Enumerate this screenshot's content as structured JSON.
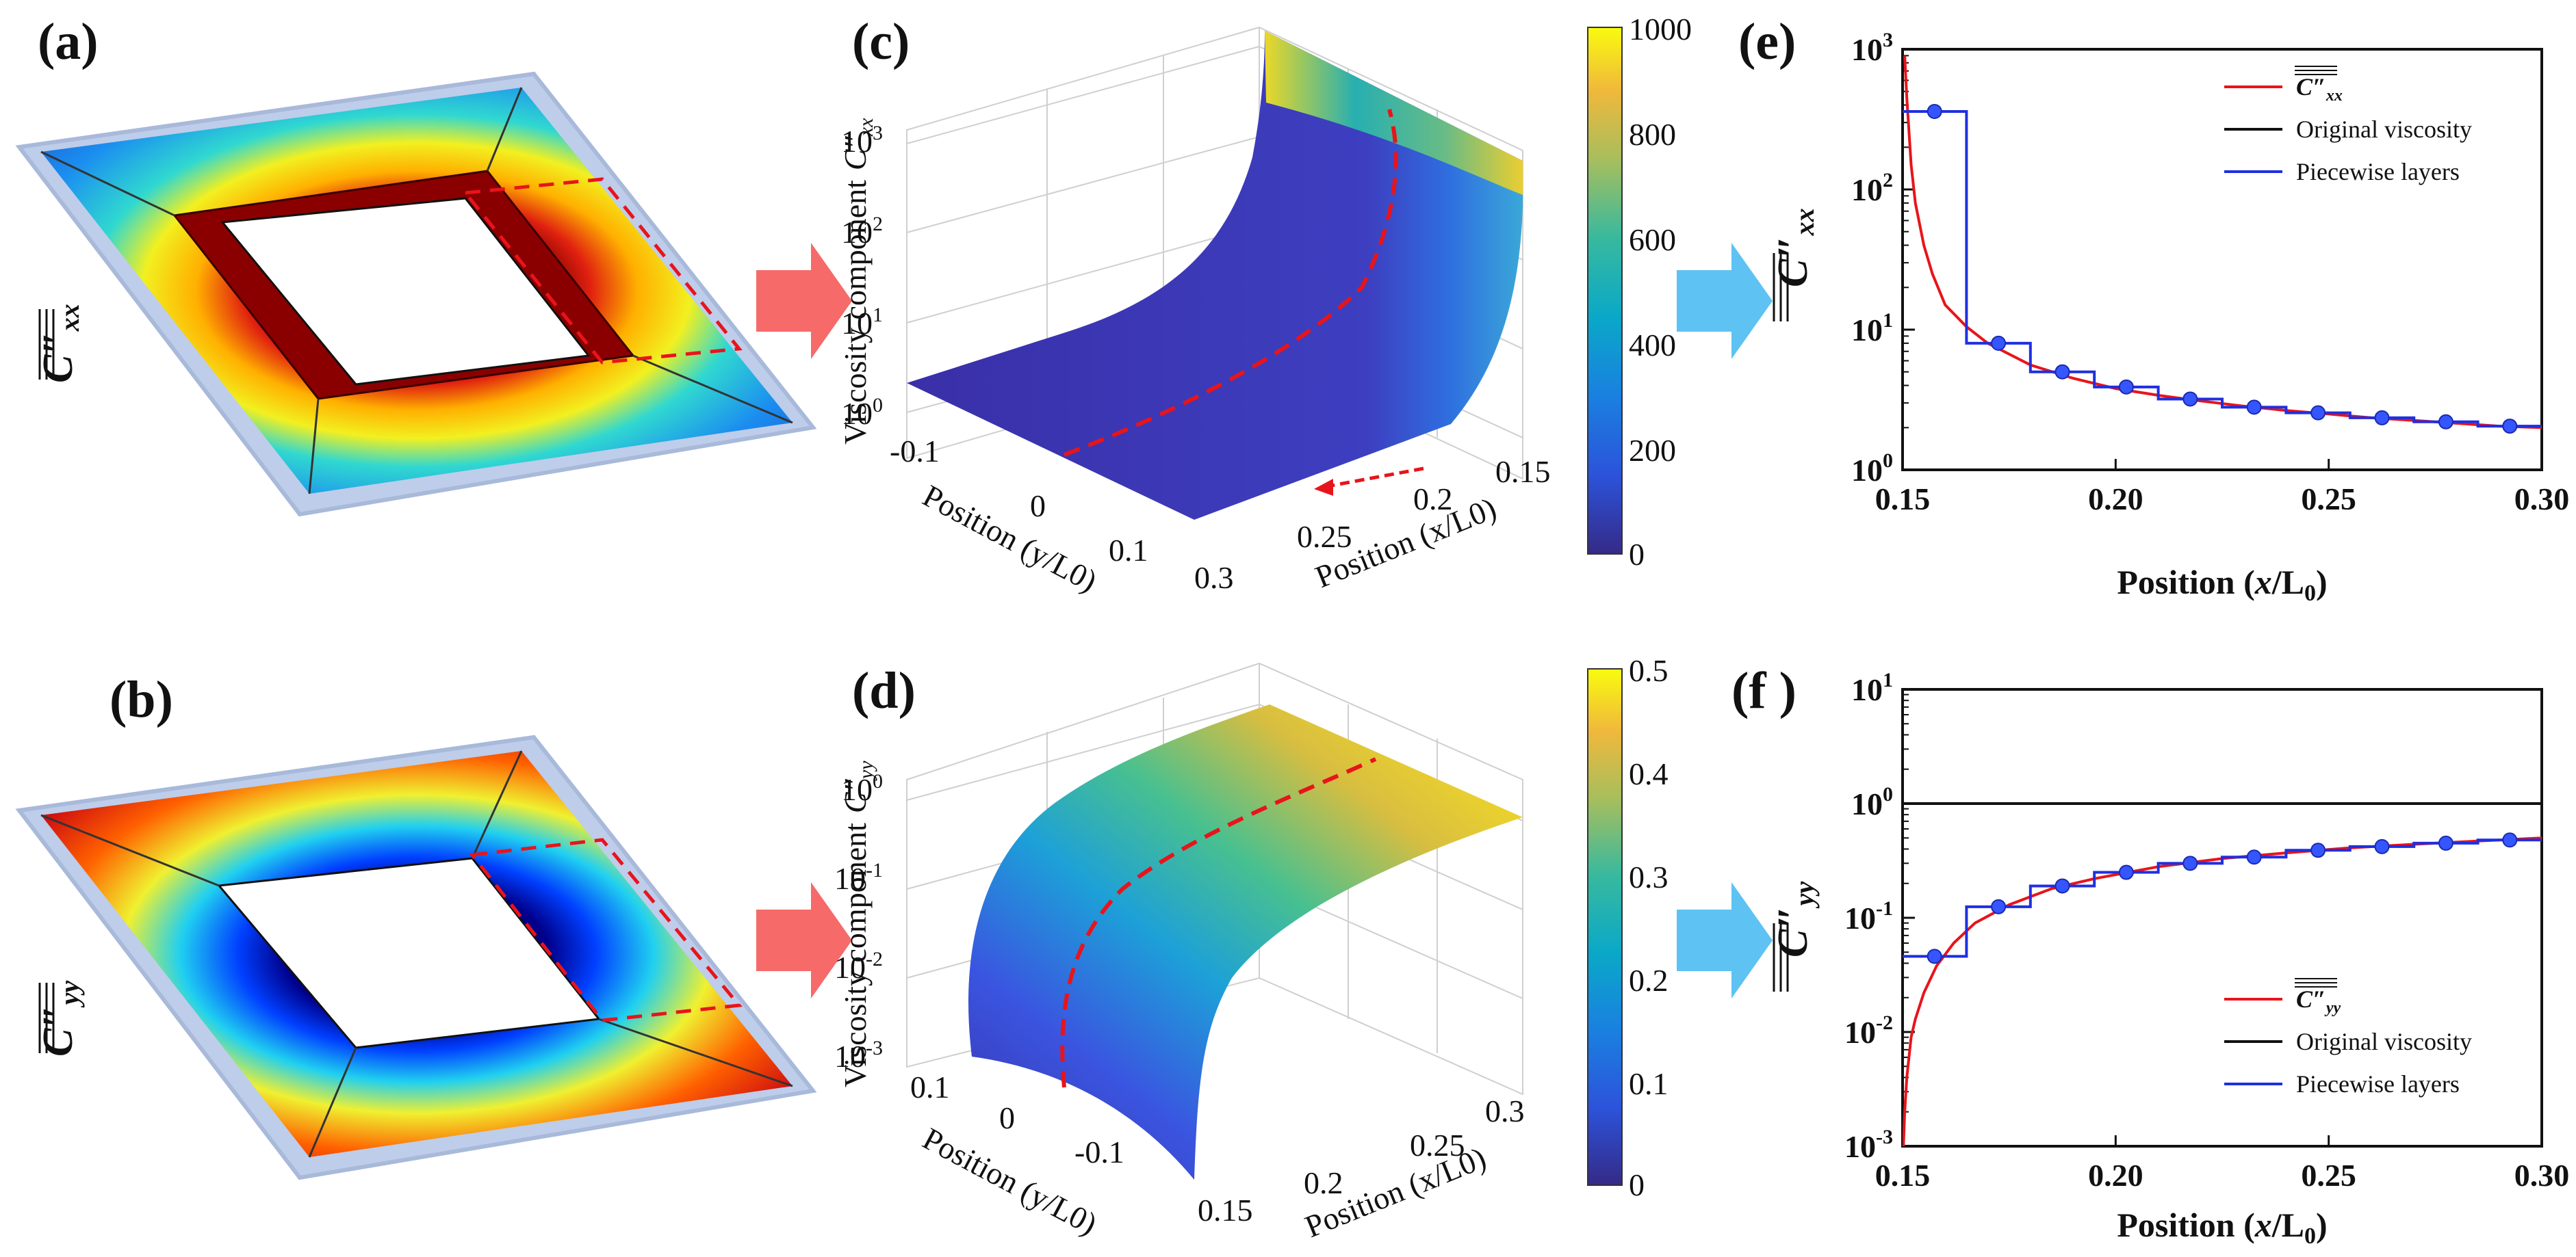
{
  "panels": {
    "a": {
      "label": "(a)",
      "symbol": "C″",
      "subscript": "xx"
    },
    "b": {
      "label": "(b)",
      "symbol": "C″",
      "subscript": "yy"
    },
    "c": {
      "label": "(c)",
      "zlabel": "Viscosity component",
      "zsymbol": "C″",
      "zsub": "xx",
      "ylabel": "Position (y/L0)",
      "xlabel": "Position (x/L0)",
      "zticks": [
        "10",
        "10",
        "10",
        "10"
      ],
      "zexps": [
        "0",
        "1",
        "2",
        "3"
      ],
      "yticks": [
        "-0.1",
        "0",
        "0.1",
        "0.3"
      ],
      "xticks": [
        "0.15",
        "0.2",
        "0.25"
      ]
    },
    "d": {
      "label": "(d)",
      "zlabel": "Viscosity component",
      "zsymbol": "C″",
      "zsub": "yy",
      "ylabel": "Position (y/L0)",
      "xlabel": "Position (x/L0)",
      "zticks": [
        "10",
        "10",
        "10",
        "10"
      ],
      "zexps": [
        "-3",
        "-2",
        "-1",
        "0"
      ],
      "yticks": [
        "0.1",
        "0",
        "-0.1"
      ],
      "xticks": [
        "0.15",
        "0.2",
        "0.25",
        "0.3"
      ]
    },
    "e": {
      "label": "(e)"
    },
    "f": {
      "label": "(f )"
    }
  },
  "colorbars": [
    {
      "ticks": [
        "1000",
        "800",
        "600",
        "400",
        "200",
        "0"
      ]
    },
    {
      "ticks": [
        "0.5",
        "0.4",
        "0.3",
        "0.2",
        "0.1",
        "0"
      ]
    }
  ],
  "colors": {
    "red": "#e8141b",
    "black": "#111111",
    "blue": "#1f2fe0",
    "arrow_red": "#f66a6a",
    "arrow_blue": "#5ec2f3"
  },
  "chart_data": [
    {
      "type": "line",
      "panel": "e",
      "title": "",
      "xlabel": "Position (x/L0)",
      "ylabel": "C″xx",
      "yscale": "log",
      "xlim": [
        0.15,
        0.3
      ],
      "ylim": [
        1,
        1000
      ],
      "xticks": [
        "0.15",
        "0.20",
        "0.25",
        "0.30"
      ],
      "yticks": [
        {
          "base": "10",
          "exp": "0"
        },
        {
          "base": "10",
          "exp": "1"
        },
        {
          "base": "10",
          "exp": "2"
        },
        {
          "base": "10",
          "exp": "3"
        }
      ],
      "legend": {
        "position": "top-right",
        "entries": [
          {
            "name": "C″xx",
            "color": "#e8141b"
          },
          {
            "name": "Original viscosity",
            "color": "#111111"
          },
          {
            "name": "Piecewise layers",
            "color": "#1f2fe0"
          }
        ]
      },
      "series": [
        {
          "name": "C″xx",
          "kind": "curve",
          "x": [
            0.1505,
            0.151,
            0.152,
            0.153,
            0.155,
            0.157,
            0.16,
            0.165,
            0.17,
            0.18,
            0.19,
            0.2,
            0.21,
            0.22,
            0.23,
            0.24,
            0.25,
            0.26,
            0.27,
            0.28,
            0.29,
            0.3
          ],
          "y": [
            900,
            450,
            150,
            80,
            40,
            25,
            15,
            10.5,
            8.0,
            5.6,
            4.5,
            3.8,
            3.4,
            3.1,
            2.85,
            2.65,
            2.5,
            2.35,
            2.25,
            2.15,
            2.05,
            2.0
          ]
        },
        {
          "name": "Original viscosity",
          "kind": "constant",
          "x": [
            0.15,
            0.3
          ],
          "y": [
            1,
            1
          ]
        },
        {
          "name": "Piecewise layers",
          "kind": "step",
          "edges": [
            0.15,
            0.165,
            0.18,
            0.195,
            0.21,
            0.225,
            0.24,
            0.255,
            0.27,
            0.285,
            0.3
          ],
          "values": [
            360,
            8.0,
            5.0,
            3.9,
            3.2,
            2.8,
            2.55,
            2.35,
            2.2,
            2.05
          ],
          "markers_x": [
            0.1575,
            0.1725,
            0.1875,
            0.2025,
            0.2175,
            0.2325,
            0.2475,
            0.2625,
            0.2775,
            0.2925
          ]
        }
      ]
    },
    {
      "type": "line",
      "panel": "f",
      "title": "",
      "xlabel": "Position (x/L0)",
      "ylabel": "C″yy",
      "yscale": "log",
      "xlim": [
        0.15,
        0.3
      ],
      "ylim": [
        0.001,
        10
      ],
      "xticks": [
        "0.15",
        "0.20",
        "0.25",
        "0.30"
      ],
      "yticks": [
        {
          "base": "10",
          "exp": "-3"
        },
        {
          "base": "10",
          "exp": "-2"
        },
        {
          "base": "10",
          "exp": "-1"
        },
        {
          "base": "10",
          "exp": "0"
        },
        {
          "base": "10",
          "exp": "1"
        }
      ],
      "legend": {
        "position": "bottom-right",
        "entries": [
          {
            "name": "C″yy",
            "color": "#e8141b"
          },
          {
            "name": "Original viscosity",
            "color": "#111111"
          },
          {
            "name": "Piecewise layers",
            "color": "#1f2fe0"
          }
        ]
      },
      "series": [
        {
          "name": "C″yy",
          "kind": "curve",
          "x": [
            0.1502,
            0.1505,
            0.151,
            0.152,
            0.153,
            0.155,
            0.158,
            0.162,
            0.167,
            0.175,
            0.185,
            0.195,
            0.21,
            0.225,
            0.24,
            0.255,
            0.27,
            0.285,
            0.3
          ],
          "y": [
            0.001,
            0.002,
            0.004,
            0.009,
            0.013,
            0.022,
            0.038,
            0.06,
            0.09,
            0.13,
            0.18,
            0.22,
            0.28,
            0.33,
            0.37,
            0.41,
            0.44,
            0.47,
            0.5
          ]
        },
        {
          "name": "Original viscosity",
          "kind": "constant",
          "x": [
            0.15,
            0.3
          ],
          "y": [
            1,
            1
          ]
        },
        {
          "name": "Piecewise layers",
          "kind": "step",
          "edges": [
            0.15,
            0.165,
            0.18,
            0.195,
            0.21,
            0.225,
            0.24,
            0.255,
            0.27,
            0.285,
            0.3
          ],
          "values": [
            0.046,
            0.125,
            0.19,
            0.25,
            0.3,
            0.34,
            0.39,
            0.42,
            0.45,
            0.48
          ],
          "markers_x": [
            0.1575,
            0.1725,
            0.1875,
            0.2025,
            0.2175,
            0.2325,
            0.2475,
            0.2625,
            0.2775,
            0.2925
          ]
        }
      ]
    }
  ]
}
